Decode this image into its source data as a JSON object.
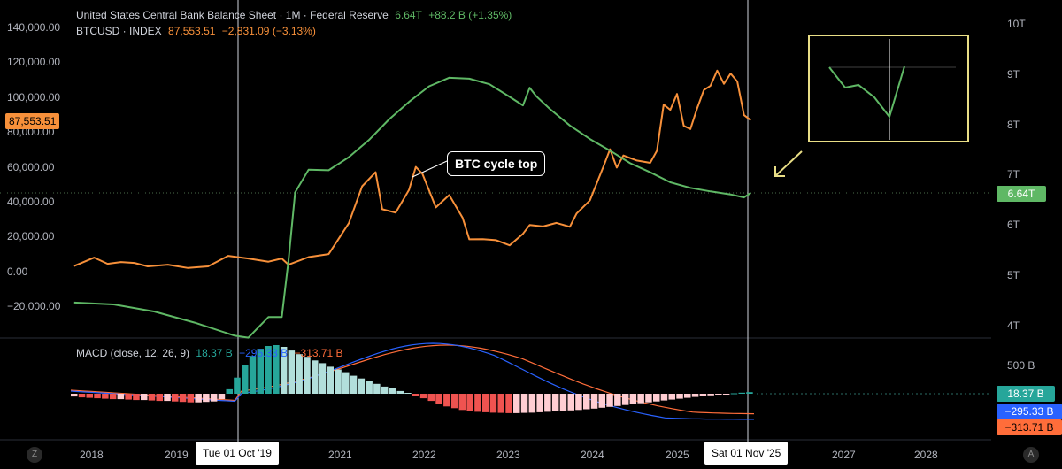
{
  "legend": {
    "balance_sheet": {
      "title": "United States Central Bank Balance Sheet · 1M · Federal Reserve",
      "value": "6.64T",
      "change": "+88.2 B (+1.35%)",
      "color": "#5fb865"
    },
    "btc": {
      "title": "BTCUSD · INDEX",
      "value": "87,553.51",
      "change": "−2,831.09 (−3.13%)",
      "color": "#f7903a"
    },
    "macd": {
      "title": "MACD (close, 12, 26, 9)",
      "hist": "18.37 B",
      "macd": "−295.33 B",
      "signal": "−313.71 B",
      "hist_color": "#26a69a",
      "macd_color": "#2962ff",
      "signal_color": "#ff6d3a"
    }
  },
  "left_axis": {
    "ticks": [
      "140,000.00",
      "120,000.00",
      "100,000.00",
      "80,000.00",
      "60,000.00",
      "40,000.00",
      "20,000.00",
      "0.00",
      "−20,000.00"
    ],
    "current_label": "87,553.51"
  },
  "right_axis": {
    "ticks": [
      "10T",
      "9T",
      "8T",
      "7T",
      "6T",
      "5T",
      "4T"
    ],
    "current_label": "6.64T"
  },
  "macd_axis": {
    "ticks": [
      "500 B"
    ],
    "hist_label": "18.37 B",
    "macd_label": "−295.33 B",
    "signal_label": "−313.71 B"
  },
  "x_axis": {
    "ticks": [
      "2018",
      "2019",
      "2021",
      "2022",
      "2023",
      "2024",
      "2025",
      "2027",
      "2028"
    ],
    "crosshair_1": "Tue 01 Oct '19",
    "crosshair_2": "Sat 01 Nov '25"
  },
  "annotation": {
    "callout": "BTC cycle top"
  },
  "icons": {
    "bottom_left": "Z",
    "bottom_right": "A"
  },
  "chart_data": {
    "type": "line",
    "x_range": [
      "2017-07",
      "2028-06"
    ],
    "series": [
      {
        "name": "BTCUSD · INDEX",
        "axis": "left",
        "color": "#f7903a",
        "points": [
          [
            "2017-07",
            4700
          ],
          [
            "2017-10",
            9500
          ],
          [
            "2017-12",
            6000
          ],
          [
            "2018-02",
            7000
          ],
          [
            "2018-04",
            6500
          ],
          [
            "2018-06",
            4500
          ],
          [
            "2018-09",
            5500
          ],
          [
            "2018-12",
            3600
          ],
          [
            "2019-03",
            4500
          ],
          [
            "2019-06",
            10500
          ],
          [
            "2019-09",
            9000
          ],
          [
            "2019-12",
            7200
          ],
          [
            "2020-02",
            9000
          ],
          [
            "2020-03",
            5500
          ],
          [
            "2020-06",
            9800
          ],
          [
            "2020-09",
            11500
          ],
          [
            "2020-12",
            29000
          ],
          [
            "2021-02",
            50000
          ],
          [
            "2021-04",
            58000
          ],
          [
            "2021-05",
            37000
          ],
          [
            "2021-07",
            35000
          ],
          [
            "2021-09",
            48000
          ],
          [
            "2021-10",
            61000
          ],
          [
            "2021-11",
            57000
          ],
          [
            "2022-01",
            38000
          ],
          [
            "2022-03",
            45000
          ],
          [
            "2022-05",
            32000
          ],
          [
            "2022-06",
            19900
          ],
          [
            "2022-08",
            20000
          ],
          [
            "2022-10",
            19400
          ],
          [
            "2022-12",
            16500
          ],
          [
            "2023-02",
            23000
          ],
          [
            "2023-03",
            28000
          ],
          [
            "2023-05",
            27200
          ],
          [
            "2023-07",
            29200
          ],
          [
            "2023-09",
            27000
          ],
          [
            "2023-10",
            34500
          ],
          [
            "2023-12",
            42000
          ],
          [
            "2024-02",
            61000
          ],
          [
            "2024-03",
            71000
          ],
          [
            "2024-04",
            60600
          ],
          [
            "2024-05",
            67500
          ],
          [
            "2024-07",
            64600
          ],
          [
            "2024-09",
            63300
          ],
          [
            "2024-10",
            70200
          ],
          [
            "2024-11",
            96400
          ],
          [
            "2024-12",
            93400
          ],
          [
            "2025-01",
            102400
          ],
          [
            "2025-02",
            84300
          ],
          [
            "2025-03",
            82500
          ],
          [
            "2025-04",
            94200
          ],
          [
            "2025-05",
            104600
          ],
          [
            "2025-06",
            107100
          ],
          [
            "2025-07",
            115700
          ],
          [
            "2025-08",
            108200
          ],
          [
            "2025-09",
            114000
          ],
          [
            "2025-10",
            109500
          ],
          [
            "2025-11",
            90400
          ],
          [
            "2025-12",
            87553
          ]
        ]
      },
      {
        "name": "United States Central Bank Balance Sheet",
        "axis": "right",
        "unit": "T",
        "color": "#5fb865",
        "points": [
          [
            "2017-07",
            4.46
          ],
          [
            "2018-01",
            4.42
          ],
          [
            "2018-07",
            4.28
          ],
          [
            "2019-01",
            4.06
          ],
          [
            "2019-07",
            3.8
          ],
          [
            "2019-09",
            3.76
          ],
          [
            "2019-12",
            4.17
          ],
          [
            "2020-02",
            4.17
          ],
          [
            "2020-03",
            5.3
          ],
          [
            "2020-04",
            6.65
          ],
          [
            "2020-06",
            7.1
          ],
          [
            "2020-09",
            7.09
          ],
          [
            "2020-12",
            7.35
          ],
          [
            "2021-03",
            7.69
          ],
          [
            "2021-06",
            8.1
          ],
          [
            "2021-09",
            8.45
          ],
          [
            "2021-12",
            8.76
          ],
          [
            "2022-03",
            8.93
          ],
          [
            "2022-06",
            8.91
          ],
          [
            "2022-09",
            8.8
          ],
          [
            "2022-12",
            8.55
          ],
          [
            "2023-02",
            8.38
          ],
          [
            "2023-03",
            8.73
          ],
          [
            "2023-04",
            8.56
          ],
          [
            "2023-06",
            8.31
          ],
          [
            "2023-09",
            7.98
          ],
          [
            "2023-12",
            7.71
          ],
          [
            "2024-03",
            7.48
          ],
          [
            "2024-06",
            7.23
          ],
          [
            "2024-09",
            7.05
          ],
          [
            "2024-12",
            6.85
          ],
          [
            "2025-03",
            6.74
          ],
          [
            "2025-06",
            6.67
          ],
          [
            "2025-09",
            6.61
          ],
          [
            "2025-11",
            6.55
          ],
          [
            "2025-12",
            6.64
          ]
        ]
      },
      {
        "name": "MACD histogram",
        "axis": "macd",
        "type": "histogram",
        "color_pos": "#26a69a",
        "color_neg": "#ef5350",
        "values": [
          -30,
          -40,
          -45,
          -50,
          -55,
          -60,
          -60,
          -65,
          -70,
          -70,
          -75,
          -80,
          -80,
          -85,
          -90,
          -95,
          -95,
          -90,
          -85,
          -60,
          50,
          180,
          320,
          420,
          500,
          530,
          540,
          520,
          480,
          440,
          410,
          370,
          340,
          300,
          270,
          240,
          200,
          170,
          140,
          110,
          80,
          60,
          30,
          10,
          -20,
          -50,
          -80,
          -110,
          -140,
          -160,
          -180,
          -190,
          -200,
          -205,
          -210,
          -212,
          -215,
          -215,
          -212,
          -210,
          -205,
          -200,
          -195,
          -190,
          -185,
          -180,
          -172,
          -165,
          -155,
          -145,
          -135,
          -125,
          -115,
          -105,
          -95,
          -85,
          -75,
          -65,
          -55,
          -45,
          -35,
          -25,
          -18,
          -10,
          -5,
          5,
          12,
          18
        ]
      }
    ]
  }
}
